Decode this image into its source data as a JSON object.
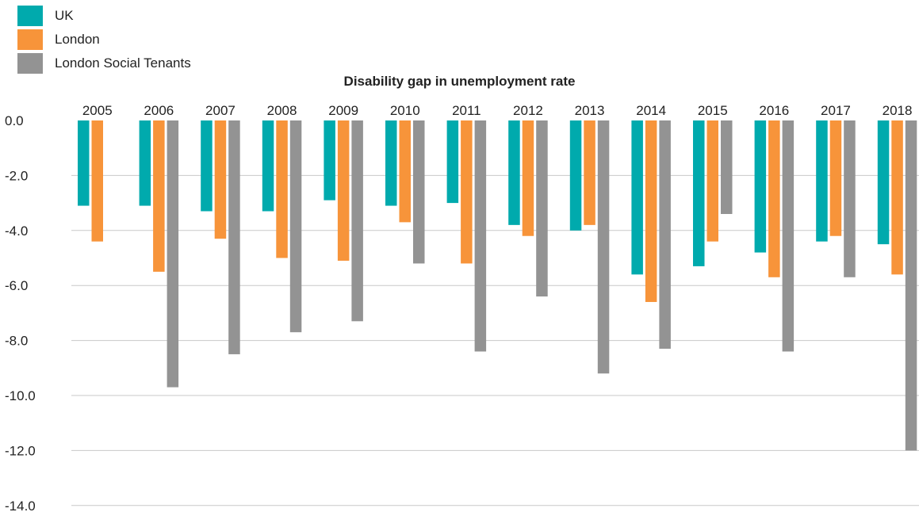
{
  "chart_data": {
    "type": "bar",
    "title": "Disability gap in unemployment rate",
    "xlabel": "",
    "ylabel": "",
    "categories": [
      "2005",
      "2006",
      "2007",
      "2008",
      "2009",
      "2010",
      "2011",
      "2012",
      "2013",
      "2014",
      "2015",
      "2016",
      "2017",
      "2018"
    ],
    "yticks": [
      "0.0",
      "-2.0",
      "-4.0",
      "-6.0",
      "-8.0",
      "-10.0",
      "-12.0",
      "-14.0"
    ],
    "ylim": [
      -14,
      0
    ],
    "grid": true,
    "legend_position": "top-left",
    "series": [
      {
        "name": "UK",
        "color": "#00aaad",
        "values": [
          -3.1,
          -3.1,
          -3.3,
          -3.3,
          -2.9,
          -3.1,
          -3.0,
          -3.8,
          -4.0,
          -5.6,
          -5.3,
          -4.8,
          -4.4,
          -4.5
        ]
      },
      {
        "name": "London",
        "color": "#f7943a",
        "values": [
          -4.4,
          -5.5,
          -4.3,
          -5.0,
          -5.1,
          -3.7,
          -5.2,
          -4.2,
          -3.8,
          -6.6,
          -4.4,
          -5.7,
          -4.2,
          -5.6
        ]
      },
      {
        "name": "London Social Tenants",
        "color": "#939393",
        "values": [
          0,
          -9.7,
          -8.5,
          -7.7,
          -7.3,
          -5.2,
          -8.4,
          -6.4,
          -9.2,
          -8.3,
          -3.4,
          -8.4,
          -5.7,
          -12.0
        ]
      }
    ]
  }
}
